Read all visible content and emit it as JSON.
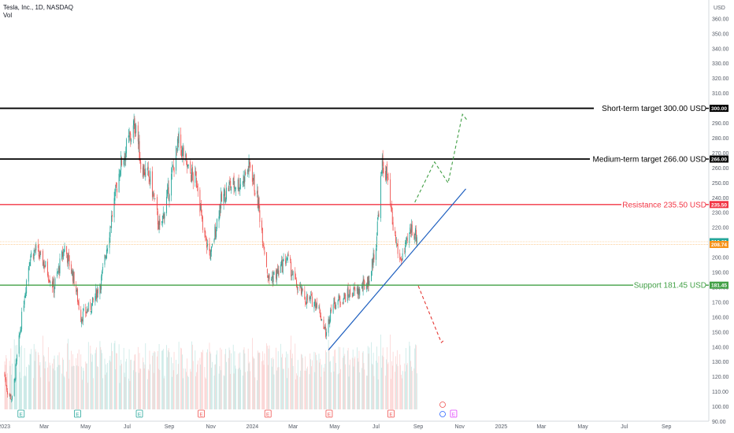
{
  "header": {
    "symbol_line": "Tesla, Inc., 1D, NASDAQ",
    "volume_label": "Vol"
  },
  "colors": {
    "up": "#26a69a",
    "down": "#ef5350",
    "short_term": "#000000",
    "medium_term": "#000000",
    "resistance": "#f23645",
    "support": "#43a047",
    "trendline": "#1e5fbf",
    "bull_path": "#43a047",
    "bear_path": "#e53935",
    "last_price": "#f7931a"
  },
  "chart_data": {
    "type": "candlestick",
    "title": "Tesla, Inc., 1D, NASDAQ",
    "currency": "USD",
    "ylim": [
      85,
      373
    ],
    "y_ticks": [
      90,
      100,
      110,
      120,
      130,
      140,
      150,
      160,
      170,
      180,
      190,
      200,
      210,
      220,
      230,
      240,
      250,
      260,
      270,
      280,
      290,
      310,
      320,
      330,
      340,
      350,
      360
    ],
    "x_ticks": [
      "2023",
      "Mar",
      "May",
      "Jul",
      "Sep",
      "Nov",
      "2024",
      "Mar",
      "May",
      "Jul",
      "Sep",
      "Nov",
      "2025",
      "Mar",
      "May",
      "Jul",
      "Sep"
    ],
    "x_start": "2023-01-01",
    "x_end": "2025-09-30",
    "price_keyframes": [
      [
        "2023-01-01",
        123
      ],
      [
        "2023-01-06",
        110
      ],
      [
        "2023-01-13",
        105
      ],
      [
        "2023-01-20",
        133
      ],
      [
        "2023-01-31",
        175
      ],
      [
        "2023-02-08",
        201
      ],
      [
        "2023-02-16",
        205
      ],
      [
        "2023-03-01",
        196
      ],
      [
        "2023-03-15",
        180
      ],
      [
        "2023-03-31",
        207
      ],
      [
        "2023-04-14",
        185
      ],
      [
        "2023-04-24",
        160
      ],
      [
        "2023-05-10",
        168
      ],
      [
        "2023-05-24",
        185
      ],
      [
        "2023-06-05",
        218
      ],
      [
        "2023-06-21",
        262
      ],
      [
        "2023-07-05",
        280
      ],
      [
        "2023-07-14",
        290
      ],
      [
        "2023-07-21",
        262
      ],
      [
        "2023-08-04",
        252
      ],
      [
        "2023-08-18",
        218
      ],
      [
        "2023-09-01",
        247
      ],
      [
        "2023-09-15",
        278
      ],
      [
        "2023-09-29",
        258
      ],
      [
        "2023-10-13",
        250
      ],
      [
        "2023-10-20",
        218
      ],
      [
        "2023-11-01",
        201
      ],
      [
        "2023-11-14",
        235
      ],
      [
        "2023-11-28",
        248
      ],
      [
        "2023-12-15",
        250
      ],
      [
        "2023-12-29",
        262
      ],
      [
        "2024-01-10",
        235
      ],
      [
        "2024-01-25",
        185
      ],
      [
        "2024-02-08",
        190
      ],
      [
        "2024-02-21",
        200
      ],
      [
        "2024-03-05",
        182
      ],
      [
        "2024-03-20",
        172
      ],
      [
        "2024-04-05",
        170
      ],
      [
        "2024-04-19",
        148
      ],
      [
        "2024-04-26",
        168
      ],
      [
        "2024-05-10",
        172
      ],
      [
        "2024-05-24",
        176
      ],
      [
        "2024-06-07",
        178
      ],
      [
        "2024-06-21",
        185
      ],
      [
        "2024-07-01",
        210
      ],
      [
        "2024-07-10",
        262
      ],
      [
        "2024-07-17",
        255
      ],
      [
        "2024-07-25",
        222
      ],
      [
        "2024-08-05",
        198
      ],
      [
        "2024-08-13",
        205
      ],
      [
        "2024-08-22",
        220
      ],
      [
        "2024-08-30",
        214
      ]
    ],
    "volume_scale": [
      0,
      1
    ],
    "levels": [
      {
        "label": "Short-term target 300.00 USD",
        "price": 300.0,
        "tag": "300.00",
        "color_key": "short_term"
      },
      {
        "label": "Medium-term target 266.00 USD",
        "price": 266.0,
        "tag": "266.00",
        "color_key": "medium_term"
      },
      {
        "label": "Resistance 235.50 USD",
        "price": 235.5,
        "tag": "235.50",
        "color_key": "resistance"
      },
      {
        "label": "Support 181.45 USD",
        "price": 181.45,
        "tag": "181.45",
        "color_key": "support"
      }
    ],
    "price_lines": [
      {
        "price": 210.6,
        "tag": "210.60",
        "kind": "last"
      },
      {
        "price": 208.74,
        "tag": "208.74",
        "kind": "prev"
      }
    ],
    "trendline": {
      "from": [
        "2024-04-22",
        138
      ],
      "to": [
        "2024-11-10",
        246
      ]
    },
    "bull_projection": [
      [
        "2024-08-27",
        237
      ],
      [
        "2024-09-25",
        264
      ],
      [
        "2024-10-15",
        250
      ],
      [
        "2024-11-05",
        296
      ],
      [
        "2024-11-12",
        292
      ]
    ],
    "bear_projection": [
      [
        "2024-09-01",
        181
      ],
      [
        "2024-10-05",
        143
      ],
      [
        "2024-10-10",
        145
      ]
    ],
    "event_markers": [
      {
        "date": "2023-01-26",
        "letter": "E",
        "kind": "earn-up"
      },
      {
        "date": "2023-04-19",
        "letter": "E",
        "kind": "earn-up"
      },
      {
        "date": "2023-07-19",
        "letter": "E",
        "kind": "earn-up"
      },
      {
        "date": "2023-10-18",
        "letter": "E",
        "kind": "earn-down"
      },
      {
        "date": "2024-01-24",
        "letter": "E",
        "kind": "earn-down"
      },
      {
        "date": "2024-04-23",
        "letter": "E",
        "kind": "earn-down"
      },
      {
        "date": "2024-07-23",
        "letter": "E",
        "kind": "earn-down"
      },
      {
        "date": "2024-10-23",
        "letter": "E",
        "kind": "earn-future"
      }
    ]
  }
}
